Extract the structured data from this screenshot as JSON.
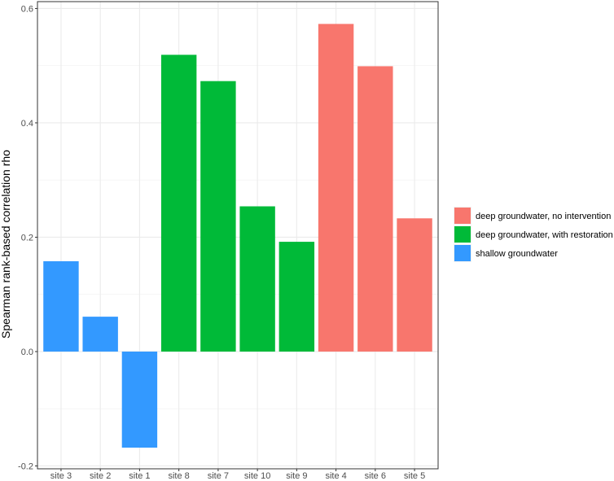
{
  "chart_data": {
    "type": "bar",
    "ylabel": "Spearman rank-based correlation rho",
    "xlabel": "",
    "ylim": [
      -0.2,
      0.6
    ],
    "yticks": [
      -0.2,
      0.0,
      0.2,
      0.4,
      0.6
    ],
    "ytick_labels": [
      "-0.2",
      "0.0",
      "0.2",
      "0.4",
      "0.6"
    ],
    "grid": true,
    "legend_position": "right",
    "categories": [
      "site 3",
      "site 2",
      "site 1",
      "site 8",
      "site 7",
      "site 10",
      "site 9",
      "site 4",
      "site 6",
      "site 5"
    ],
    "values": [
      0.158,
      0.061,
      -0.168,
      0.519,
      0.473,
      0.254,
      0.192,
      0.573,
      0.499,
      0.233
    ],
    "groups": [
      "shallow groundwater",
      "shallow groundwater",
      "shallow groundwater",
      "deep groundwater, with restoration",
      "deep groundwater, with restoration",
      "deep groundwater, with restoration",
      "deep groundwater, with restoration",
      "deep groundwater, no intervention",
      "deep groundwater, no intervention",
      "deep groundwater, no intervention"
    ],
    "legend": [
      {
        "name": "deep groundwater, no intervention",
        "color": "#F8766D"
      },
      {
        "name": "deep groundwater, with restoration",
        "color": "#00BA38"
      },
      {
        "name": "shallow groundwater",
        "color": "#3399FF"
      }
    ]
  }
}
